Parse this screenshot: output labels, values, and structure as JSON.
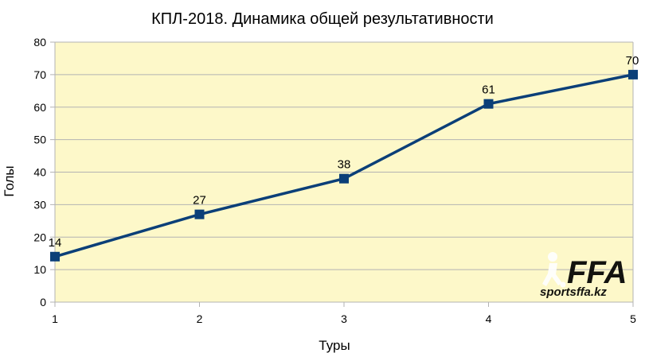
{
  "chart_data": {
    "type": "line",
    "title": "КПЛ-2018. Динамика общей результативности",
    "xlabel": "Туры",
    "ylabel": "Голы",
    "x": [
      1,
      2,
      3,
      4,
      5
    ],
    "series": [
      {
        "values": [
          14,
          27,
          38,
          61,
          70
        ]
      }
    ],
    "data_labels": [
      "14",
      "27",
      "38",
      "61",
      "70"
    ],
    "ylim": [
      0,
      80
    ],
    "yticks": [
      "0",
      "10",
      "20",
      "30",
      "40",
      "50",
      "60",
      "70",
      "80"
    ],
    "xticks": [
      "1",
      "2",
      "3",
      "4",
      "5"
    ],
    "grid": "horizontal",
    "legend": "none",
    "colors": {
      "plot_background": "#fdf8c9",
      "line": "#0b3f78",
      "marker": "#0b3f78",
      "grid": "#b3b3b3",
      "axis": "#b3b3b3"
    }
  },
  "watermark": {
    "logo": "FFA",
    "site": "sportsffa.kz"
  }
}
